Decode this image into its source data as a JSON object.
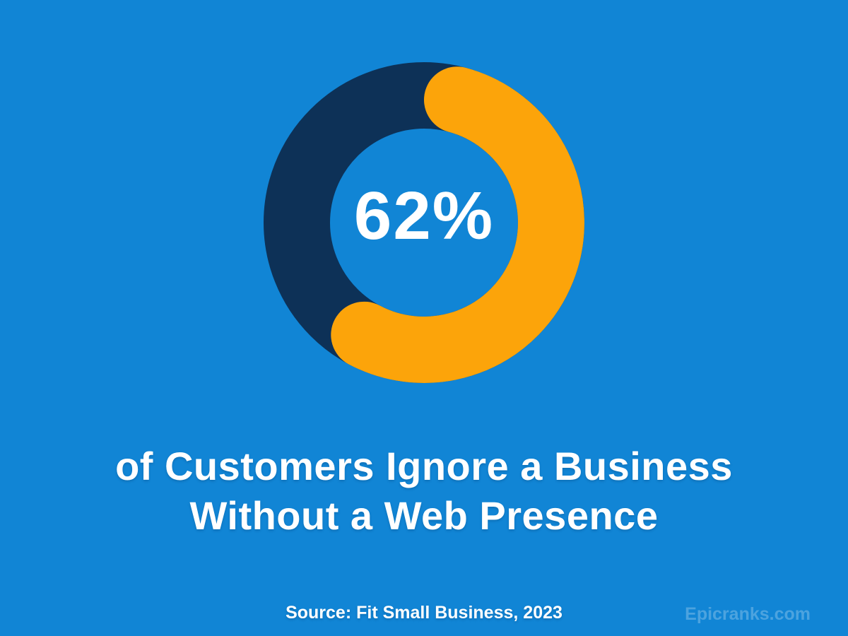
{
  "page": {
    "background_color": "#1185D5"
  },
  "chart_data": {
    "type": "donut",
    "values": [
      62,
      38
    ],
    "colors": [
      "#FCA40A",
      "#0D3157"
    ],
    "labels": [
      "62%",
      ""
    ],
    "center_label": "62%",
    "start_angle_deg": 0,
    "direction": "clockwise",
    "rounded_caps": true,
    "title": "of Customers Ignore a Business Without a Web Presence",
    "source": "Source: Fit Small Business, 2023"
  },
  "heading": {
    "line1": "of Customers Ignore a Business",
    "line2": "Without a Web Presence"
  },
  "footer": {
    "source_label": "Source: Fit Small Business, 2023",
    "watermark": "Epicranks.com"
  }
}
